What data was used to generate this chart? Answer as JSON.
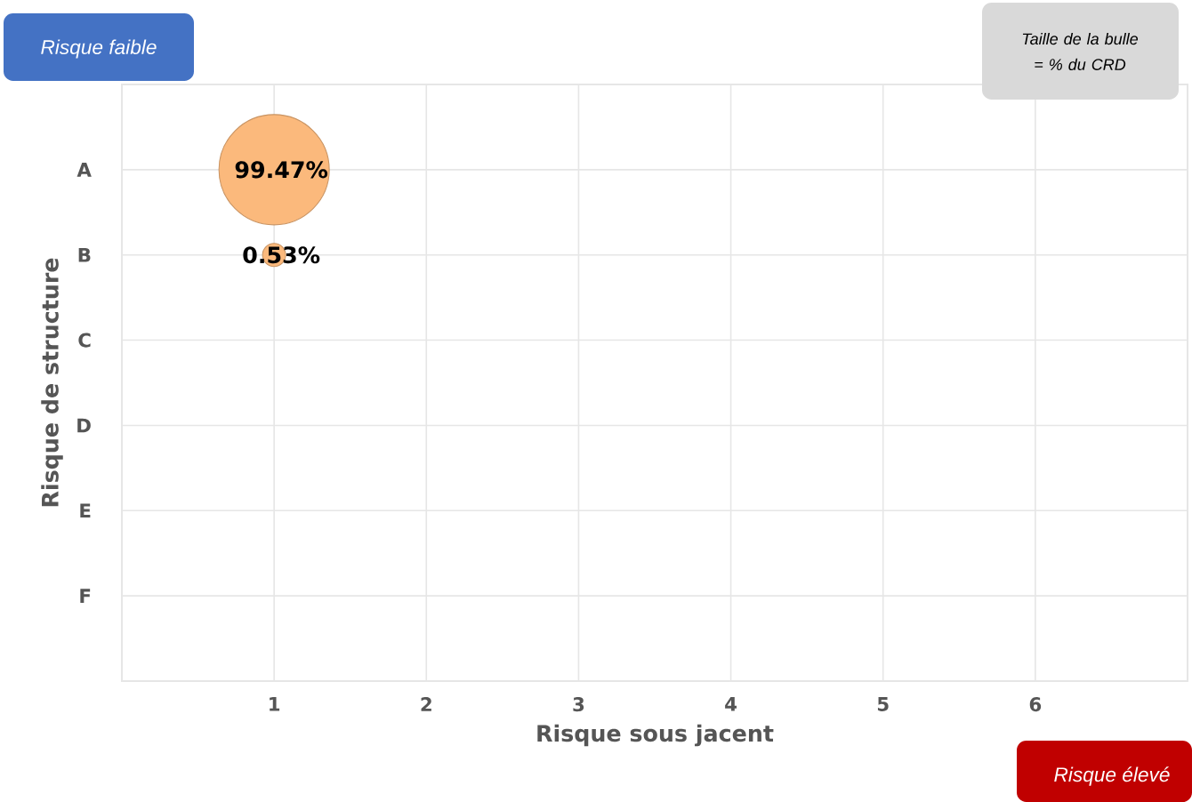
{
  "chart_data": {
    "type": "bubble",
    "orientation": "horizontal",
    "xlabel": "Risque sous jacent",
    "ylabel": "Risque de structure",
    "categories": [
      "A",
      "B",
      "C",
      "D",
      "E",
      "F"
    ],
    "values": [
      1,
      1,
      null,
      null,
      null,
      null
    ],
    "sizes": [
      1,
      0.044,
      null,
      null,
      null,
      null
    ],
    "color": "#fbb97c",
    "marker": "circle",
    "grid": true,
    "xlim": [
      0,
      7
    ],
    "xticks": [
      1,
      2,
      3,
      4,
      5,
      6
    ],
    "annotations": [
      "Risque faible",
      "Taille de la bulle = % du CRD",
      "Risque élevé",
      {
        "text": "99.47%",
        "x": 1,
        "y": "A"
      },
      {
        "text": "0.53%",
        "x": 1,
        "y": "B"
      }
    ]
  }
}
